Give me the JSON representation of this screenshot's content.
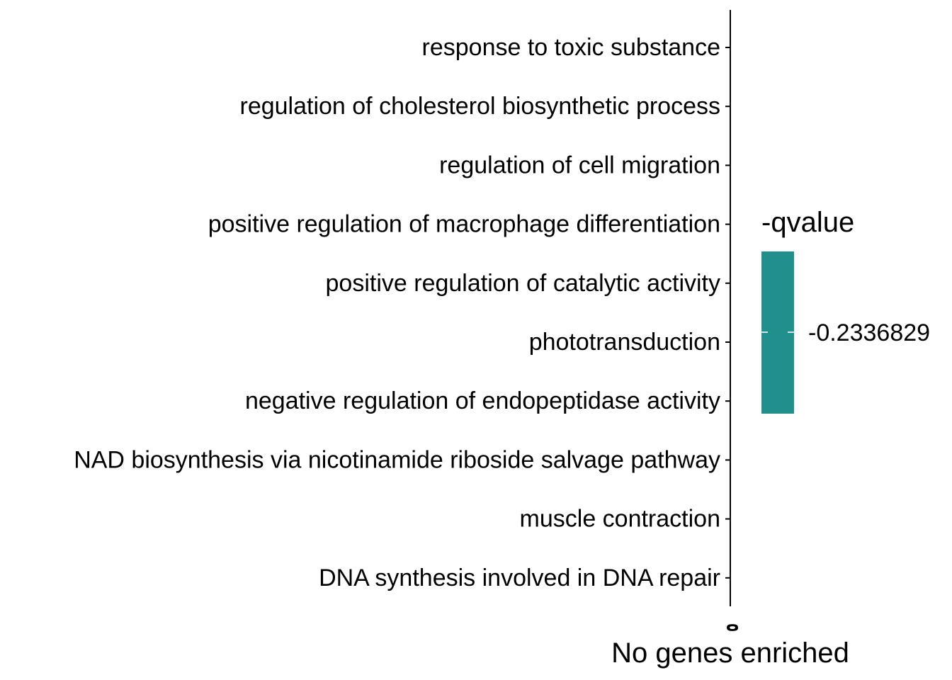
{
  "chart_data": {
    "type": "bar",
    "orientation": "horizontal",
    "categories": [
      "response to toxic substance",
      "regulation of cholesterol biosynthetic process",
      "regulation of cell migration",
      "positive regulation of macrophage differentiation",
      "positive regulation of catalytic activity",
      "phototransduction",
      "negative regulation of endopeptidase activity",
      "NAD biosynthesis via nicotinamide riboside salvage pathway",
      "muscle contraction",
      "DNA synthesis involved in DNA repair"
    ],
    "values": [
      0,
      0,
      0,
      0,
      0,
      0,
      0,
      0,
      0,
      0
    ],
    "xlabel": "No genes enriched",
    "x_tick_labels": [
      "0",
      "0"
    ],
    "legend": {
      "title": "-qvalue",
      "color": "#21908C",
      "value_label": "-0.2336829",
      "position": "right"
    },
    "grid": false
  }
}
